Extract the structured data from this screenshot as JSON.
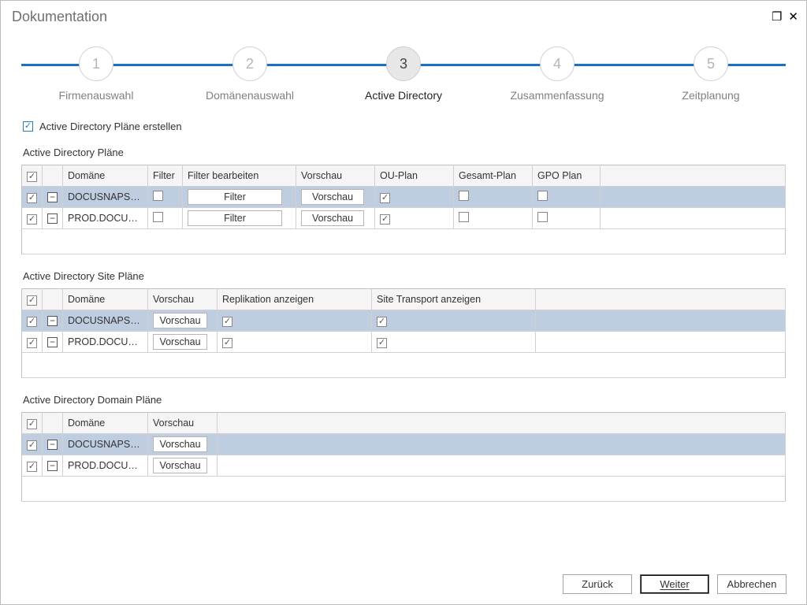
{
  "window": {
    "title": "Dokumentation",
    "maximize_glyph": "❐",
    "close_glyph": "✕"
  },
  "stepper": {
    "steps": [
      {
        "num": "1",
        "label": "Firmenauswahl"
      },
      {
        "num": "2",
        "label": "Domänenauswahl"
      },
      {
        "num": "3",
        "label": "Active Directory"
      },
      {
        "num": "4",
        "label": "Zusammenfassung"
      },
      {
        "num": "5",
        "label": "Zeitplanung"
      }
    ],
    "active_index": 2
  },
  "main_checkbox": {
    "label": "Active Directory Pläne erstellen",
    "checked": true
  },
  "grid1": {
    "title": "Active Directory Pläne",
    "headers": {
      "domain": "Domäne",
      "filter": "Filter",
      "editfilter": "Filter bearbeiten",
      "preview": "Vorschau",
      "ouplan": "OU-Plan",
      "gesamt": "Gesamt-Plan",
      "gpo": "GPO Plan"
    },
    "rows": [
      {
        "domain": "DOCUSNAPSP...",
        "filter_checked": false,
        "filter_btn": "Filter",
        "preview_btn": "Vorschau",
        "ou": true,
        "gesamt": false,
        "gpo": false,
        "highlight": true
      },
      {
        "domain": "PROD.DOCUS...",
        "filter_checked": false,
        "filter_btn": "Filter",
        "preview_btn": "Vorschau",
        "ou": true,
        "gesamt": false,
        "gpo": false,
        "highlight": false
      }
    ]
  },
  "grid2": {
    "title": "Active Directory Site Pläne",
    "headers": {
      "domain": "Domäne",
      "preview": "Vorschau",
      "repl": "Replikation anzeigen",
      "site": "Site Transport anzeigen"
    },
    "rows": [
      {
        "domain": "DOCUSNAPSP...",
        "preview_btn": "Vorschau",
        "repl": true,
        "site": true,
        "highlight": true
      },
      {
        "domain": "PROD.DOCUS...",
        "preview_btn": "Vorschau",
        "repl": true,
        "site": true,
        "highlight": false
      }
    ]
  },
  "grid3": {
    "title": "Active Directory Domain Pläne",
    "headers": {
      "domain": "Domäne",
      "preview": "Vorschau"
    },
    "rows": [
      {
        "domain": "DOCUSNAPSP...",
        "preview_btn": "Vorschau",
        "highlight": true
      },
      {
        "domain": "PROD.DOCUS...",
        "preview_btn": "Vorschau",
        "highlight": false
      }
    ]
  },
  "footer": {
    "back": "Zurück",
    "next": "Weiter",
    "cancel": "Abbrechen"
  }
}
